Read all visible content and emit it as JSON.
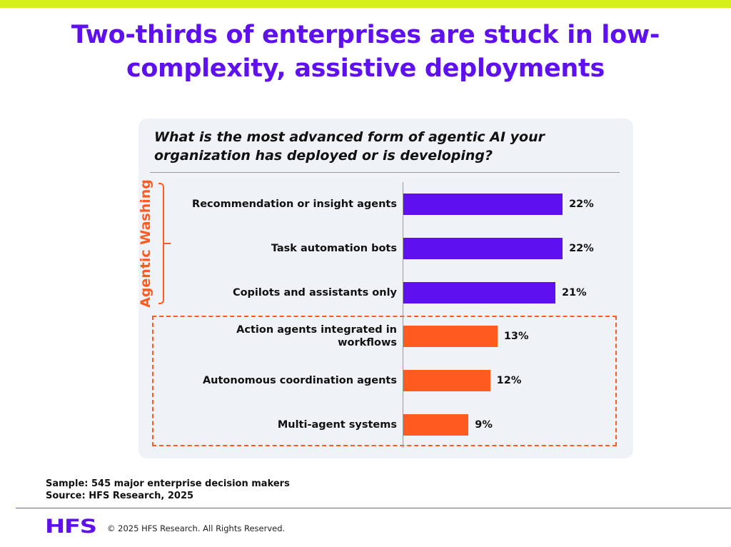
{
  "header": {
    "title_line1": "Two-thirds of enterprises are stuck in low-",
    "title_line2": "complexity, assistive deployments"
  },
  "colors": {
    "accent_bar": "#d4f01a",
    "purple": "#5f10f0",
    "orange": "#ff5a1f"
  },
  "chart_data": {
    "type": "bar",
    "orientation": "horizontal",
    "title": "What is the most advanced form of agentic AI your organization has deployed or is developing?",
    "categories": [
      "Recommendation or insight agents",
      "Task automation bots",
      "Copilots and assistants only",
      "Action agents integrated in workflows",
      "Autonomous coordination agents",
      "Multi-agent systems"
    ],
    "values": [
      22,
      22,
      21,
      13,
      12,
      9
    ],
    "value_labels": [
      "22%",
      "22%",
      "21%",
      "13%",
      "12%",
      "9%"
    ],
    "groups": [
      "purple",
      "purple",
      "purple",
      "orange",
      "orange",
      "orange"
    ],
    "bracket_label": "Agentic Washing",
    "xlim": [
      0,
      100
    ],
    "unit": "%"
  },
  "footer": {
    "sample": "Sample: 545 major enterprise decision makers",
    "source": "Source: HFS Research, 2025",
    "logo": "HFS",
    "copyright": "© 2025 HFS Research. All Rights Reserved."
  }
}
